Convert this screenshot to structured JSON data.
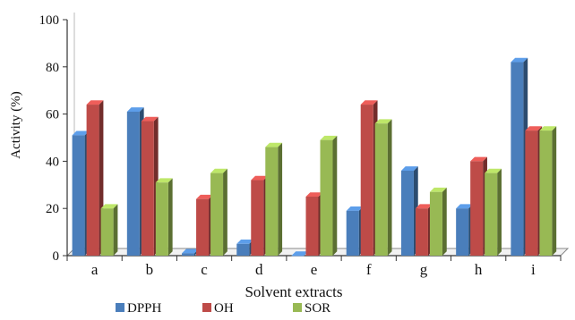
{
  "chart_data": {
    "type": "bar",
    "title": "",
    "xlabel": "Solvent extracts",
    "ylabel": "Activity (%)",
    "categories": [
      "a",
      "b",
      "c",
      "d",
      "e",
      "f",
      "g",
      "h",
      "i"
    ],
    "ylim": [
      0,
      100
    ],
    "yticks": [
      0,
      20,
      40,
      60,
      80,
      100
    ],
    "grid": false,
    "legend_position": "bottom",
    "series": [
      {
        "name": "DPPH",
        "color": "#4a7ebb",
        "values": [
          51,
          61,
          1,
          5,
          0,
          19,
          36,
          20,
          82
        ]
      },
      {
        "name": "OH",
        "color": "#be4b48",
        "values": [
          64,
          57,
          24,
          32,
          25,
          64,
          20,
          40,
          53
        ]
      },
      {
        "name": "SOR",
        "color": "#98b954",
        "values": [
          20,
          31,
          35,
          46,
          49,
          56,
          27,
          35,
          53
        ]
      }
    ]
  }
}
